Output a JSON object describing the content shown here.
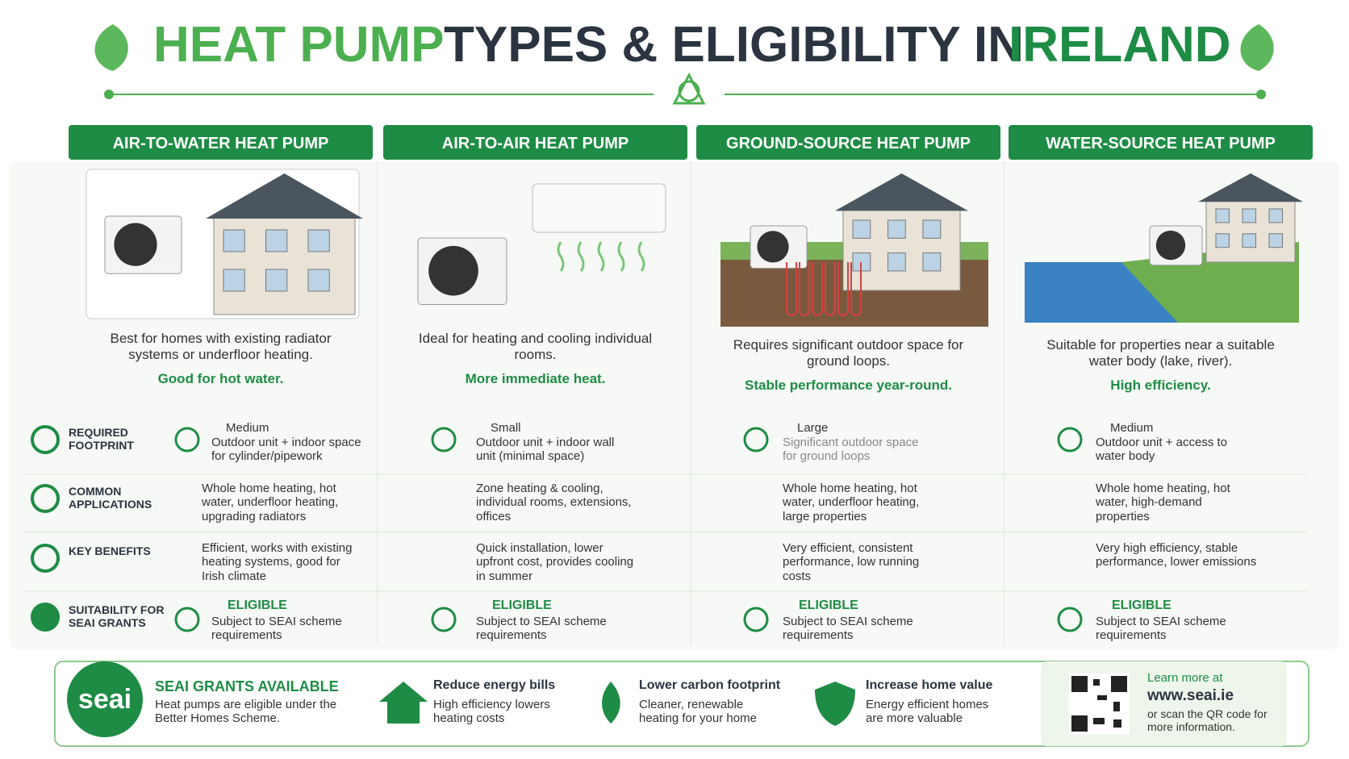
{
  "header": {
    "title_parts": [
      "HEAT PUMP",
      "TYPES & ELIGIBILITY IN",
      "IRELAND"
    ]
  },
  "row_labels": [
    "REQUIRED FOOTPRINT",
    "COMMON APPLICATIONS",
    "KEY BENEFITS",
    "SUITABILITY FOR SEAI GRANTS"
  ],
  "columns": [
    {
      "name": "AIR-TO-WATER HEAT PUMP",
      "description": "Best for homes with existing radiator systems or underfloor heating.",
      "highlight": "Good for hot water.",
      "footprint_size": "Medium",
      "footprint_detail": "Outdoor unit + indoor space for cylinder/pipework",
      "applications": "Whole home heating, hot water, underfloor heating, upgrading radiators",
      "benefits": "Efficient, works with existing heating systems, good for Irish climate",
      "eligibility": "ELIGIBLE",
      "eligibility_detail": "Subject to SEAI scheme requirements"
    },
    {
      "name": "AIR-TO-AIR HEAT PUMP",
      "description": "Ideal for heating and cooling individual rooms.",
      "highlight": "More immediate heat.",
      "footprint_size": "Small",
      "footprint_detail": "Outdoor unit + indoor wall unit (minimal space)",
      "applications": "Zone heating & cooling, individual rooms, extensions, offices",
      "benefits": "Quick installation, lower upfront cost, provides cooling in summer",
      "eligibility": "ELIGIBLE",
      "eligibility_detail": "Subject to SEAI scheme requirements"
    },
    {
      "name": "GROUND-SOURCE HEAT PUMP",
      "description": "Requires significant outdoor space for ground loops.",
      "highlight": "Stable performance year-round.",
      "footprint_size": "Large",
      "footprint_detail": "Significant outdoor space for ground loops",
      "applications": "Whole home heating, hot water, underfloor heating, large properties",
      "benefits": "Very efficient, consistent performance, low running costs",
      "eligibility": "ELIGIBLE",
      "eligibility_detail": "Subject to SEAI scheme requirements"
    },
    {
      "name": "WATER-SOURCE HEAT PUMP",
      "description": "Suitable for properties near a suitable water body (lake, river).",
      "highlight": "High efficiency.",
      "footprint_size": "Medium",
      "footprint_detail": "Outdoor unit + access to water body",
      "applications": "Whole home heating, hot water, high-demand properties",
      "benefits": "Very high efficiency, stable performance, lower emissions",
      "eligibility": "ELIGIBLE",
      "eligibility_detail": "Subject to SEAI scheme requirements"
    }
  ],
  "footer": {
    "logo": "seai",
    "grants_title": "SEAI GRANTS AVAILABLE",
    "grants_text": "Heat pumps are eligible under the Better Homes Scheme.",
    "items": [
      {
        "title": "Reduce energy bills",
        "text": "High efficiency lowers heating costs"
      },
      {
        "title": "Lower carbon footprint",
        "text": "Cleaner, renewable heating for your home"
      },
      {
        "title": "Increase home value",
        "text": "Energy efficient homes are more valuable"
      }
    ],
    "learn_more": "Learn more at",
    "url": "www.seai.ie",
    "qr_text": "or scan the QR code for more information."
  }
}
